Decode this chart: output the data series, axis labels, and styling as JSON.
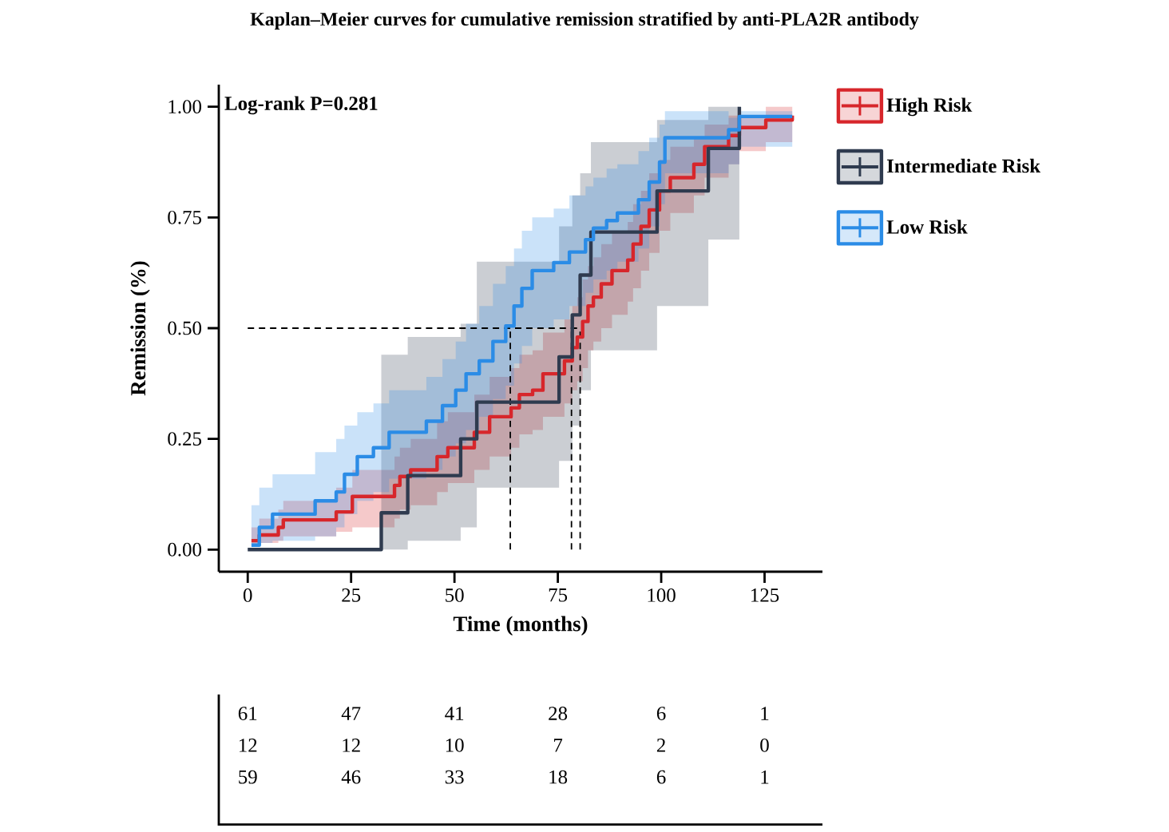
{
  "chart_data": {
    "type": "step",
    "title": "Kaplan–Meier curves for cumulative remission stratified by anti-PLA2R antibody",
    "xlabel": "Time (months)",
    "ylabel": "Remission (%)",
    "xlim": [
      -7,
      139
    ],
    "ylim": [
      -0.05,
      1.05
    ],
    "xticks": [
      0,
      25,
      50,
      75,
      100,
      125
    ],
    "yticks": [
      {
        "value": 0,
        "label": "0.00"
      },
      {
        "value": 0.25,
        "label": "0.25"
      },
      {
        "value": 0.5,
        "label": "0.50"
      },
      {
        "value": 0.75,
        "label": "0.75"
      },
      {
        "value": 1,
        "label": "1.00"
      }
    ],
    "legend": "right",
    "series": [
      {
        "name": "High Risk",
        "color": "#d7262b",
        "x": [
          0.9,
          2.8,
          7.4,
          8.6,
          21.4,
          25.3,
          35.5,
          36.8,
          39.4,
          45.8,
          48.4,
          54.8,
          58.5,
          63.7,
          65.7,
          68.9,
          71.4,
          76.6,
          78.5,
          79.7,
          81,
          82.3,
          83.6,
          85.5,
          88.1,
          91.9,
          93.2,
          95.1,
          97.1,
          99.6,
          102.2,
          107.9,
          110.5,
          116.3,
          118.9,
          125.3,
          131.7
        ],
        "values": [
          0.02,
          0.033,
          0.05,
          0.067,
          0.085,
          0.12,
          0.145,
          0.165,
          0.18,
          0.21,
          0.23,
          0.265,
          0.3,
          0.32,
          0.35,
          0.36,
          0.397,
          0.426,
          0.456,
          0.48,
          0.515,
          0.55,
          0.57,
          0.6,
          0.63,
          0.654,
          0.69,
          0.73,
          0.767,
          0.81,
          0.84,
          0.87,
          0.91,
          0.935,
          0.953,
          0.97,
          0.98
        ],
        "lower": [
          0.01,
          0.015,
          0.02,
          0.03,
          0.04,
          0.05,
          0.07,
          0.09,
          0.1,
          0.13,
          0.15,
          0.18,
          0.21,
          0.23,
          0.26,
          0.27,
          0.3,
          0.33,
          0.36,
          0.38,
          0.41,
          0.45,
          0.47,
          0.5,
          0.53,
          0.56,
          0.59,
          0.63,
          0.67,
          0.72,
          0.76,
          0.8,
          0.84,
          0.87,
          0.9,
          0.92,
          0.92
        ],
        "upper": [
          0.05,
          0.07,
          0.09,
          0.11,
          0.14,
          0.18,
          0.21,
          0.23,
          0.25,
          0.29,
          0.31,
          0.35,
          0.39,
          0.41,
          0.44,
          0.45,
          0.49,
          0.52,
          0.55,
          0.57,
          0.61,
          0.64,
          0.66,
          0.69,
          0.72,
          0.74,
          0.78,
          0.81,
          0.85,
          0.88,
          0.91,
          0.93,
          0.96,
          0.98,
          0.975,
          1.0,
          1.0
        ]
      },
      {
        "name": "Intermediate Risk",
        "color": "#2f3b4f",
        "x": [
          0,
          32.3,
          38.7,
          51.5,
          55.4,
          75.3,
          78.5,
          80.4,
          83,
          99,
          111.4,
          118.9
        ],
        "values": [
          0,
          0.083,
          0.167,
          0.25,
          0.333,
          0.435,
          0.53,
          0.62,
          0.717,
          0.81,
          0.906,
          1.0
        ],
        "lower": [
          0,
          0,
          0.02,
          0.05,
          0.14,
          0.2,
          0.28,
          0.36,
          0.45,
          0.55,
          0.7,
          1.0
        ],
        "upper": [
          0,
          0.44,
          0.48,
          0.51,
          0.65,
          0.73,
          0.8,
          0.85,
          0.92,
          0.97,
          1.0,
          1.0
        ]
      },
      {
        "name": "Low Risk",
        "color": "#2b8ce6",
        "x": [
          0.9,
          2.8,
          6,
          16.3,
          21.4,
          23.4,
          26.5,
          30.4,
          34.2,
          43.2,
          47.1,
          50.3,
          52.8,
          56,
          59.3,
          62.4,
          64.4,
          66.3,
          68.8,
          74,
          77.8,
          81.7,
          83.6,
          86.8,
          89.4,
          94.5,
          97.1,
          99.6,
          100.9,
          116.3,
          118.9,
          131.7
        ],
        "values": [
          0.01,
          0.05,
          0.08,
          0.11,
          0.13,
          0.17,
          0.21,
          0.23,
          0.265,
          0.29,
          0.325,
          0.36,
          0.397,
          0.426,
          0.47,
          0.505,
          0.55,
          0.59,
          0.63,
          0.648,
          0.672,
          0.7,
          0.726,
          0.743,
          0.76,
          0.79,
          0.83,
          0.875,
          0.93,
          0.948,
          0.978,
          0.978
        ],
        "lower": [
          0.01,
          0.015,
          0.02,
          0.03,
          0.05,
          0.08,
          0.11,
          0.13,
          0.16,
          0.18,
          0.21,
          0.24,
          0.27,
          0.3,
          0.34,
          0.37,
          0.42,
          0.46,
          0.5,
          0.52,
          0.55,
          0.58,
          0.61,
          0.63,
          0.65,
          0.68,
          0.73,
          0.78,
          0.85,
          0.87,
          0.91,
          0.91
        ],
        "upper": [
          0.1,
          0.14,
          0.17,
          0.22,
          0.25,
          0.28,
          0.31,
          0.33,
          0.36,
          0.39,
          0.43,
          0.47,
          0.51,
          0.55,
          0.6,
          0.64,
          0.68,
          0.72,
          0.75,
          0.77,
          0.8,
          0.82,
          0.84,
          0.86,
          0.87,
          0.9,
          0.93,
          0.96,
          0.99,
          0.975,
          0.99,
          0.99
        ]
      }
    ],
    "ref_lines": [
      {
        "axis": "y",
        "value": 0.5,
        "line_style": "dashed"
      },
      {
        "axis": "x",
        "value": 63.5,
        "line_style": "dashed"
      },
      {
        "axis": "x",
        "value": 78.3,
        "line_style": "dashed"
      },
      {
        "axis": "x",
        "value": 80.4,
        "line_style": "dashed"
      }
    ],
    "annotations": [
      "Log-rank P=0.281",
      "61",
      "47",
      "41",
      "28",
      "6",
      "1",
      "12",
      "12",
      "10",
      "7",
      "2",
      "0",
      "59",
      "46",
      "33",
      "18",
      "6",
      "1"
    ]
  }
}
